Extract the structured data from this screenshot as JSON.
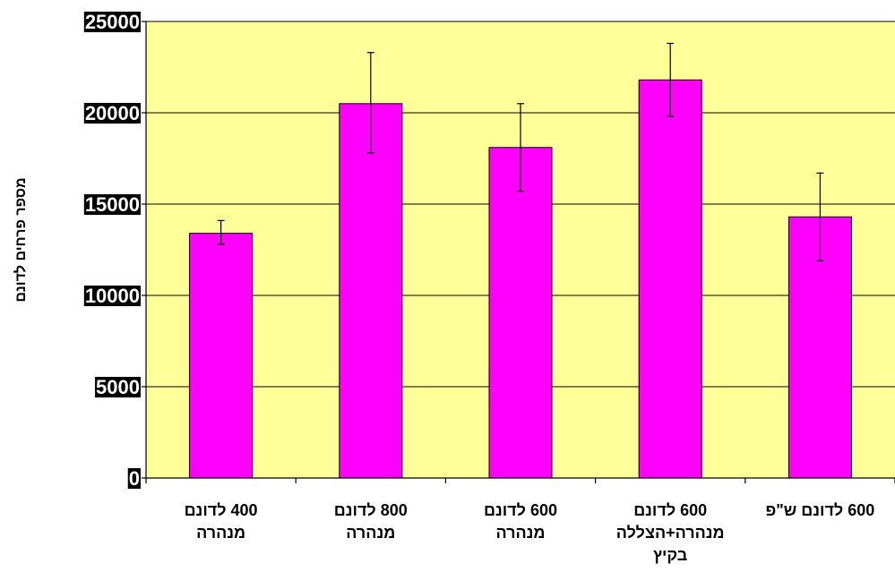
{
  "chart_data": {
    "type": "bar",
    "title": "",
    "xlabel": "",
    "ylabel": "מספר פרחים לדונם",
    "ylim": [
      0,
      25000
    ],
    "yticks": [
      0,
      5000,
      10000,
      15000,
      20000,
      25000
    ],
    "ytick_labels": [
      "0",
      "5000",
      "10000",
      "15000",
      "20000",
      "25000"
    ],
    "grid": true,
    "legend": "none",
    "categories": [
      [
        "400 לדונם",
        "מנהרה"
      ],
      [
        "800 לדונם",
        "מנהרה"
      ],
      [
        "600 לדונם",
        "מנהרה"
      ],
      [
        "600 לדונם",
        "מנהרה+הצללה",
        "בקיץ"
      ],
      [
        "600 לדונם ש\"פ"
      ]
    ],
    "values": [
      13400,
      20500,
      18100,
      21800,
      14300
    ],
    "error_bars": [
      [
        12800,
        14100
      ],
      [
        17800,
        23300
      ],
      [
        15700,
        20500
      ],
      [
        19800,
        23800
      ],
      [
        11900,
        16700
      ]
    ],
    "colors": {
      "plot_background": "#ffff99",
      "bar_fill": "#ff00ff",
      "bar_stroke": "#000000",
      "gridline": "#000000",
      "tick_label_background": "#000000",
      "tick_label_text": "#ffffff"
    }
  }
}
